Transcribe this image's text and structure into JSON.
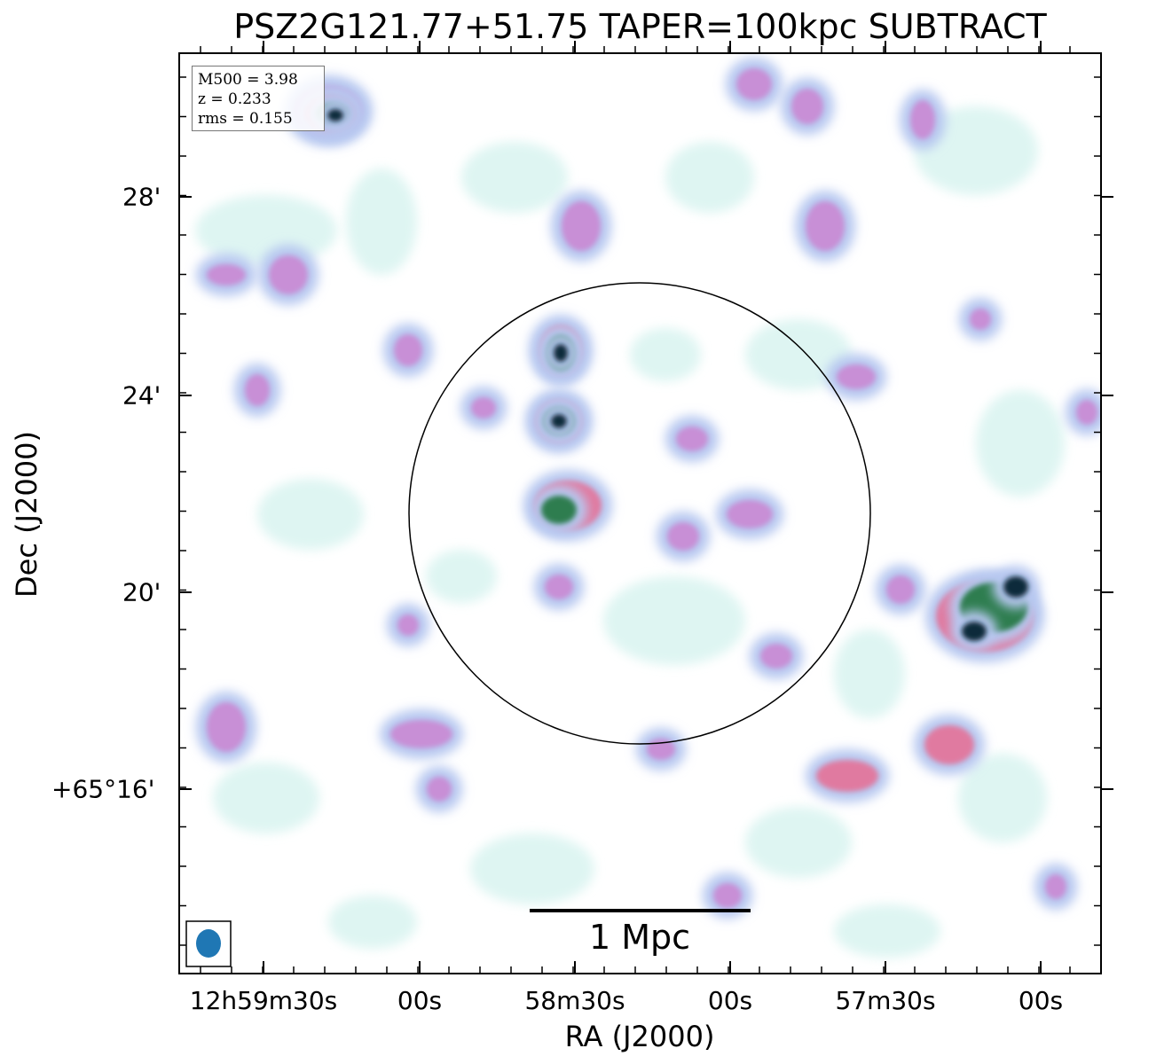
{
  "title": "PSZ2G121.77+51.75 TAPER=100kpc SUBTRACT",
  "axes": {
    "xlabel": "RA (J2000)",
    "ylabel": "Dec (J2000)",
    "x_ticks": [
      "12h59m30s",
      "00s",
      "58m30s",
      "00s",
      "57m30s",
      "00s"
    ],
    "y_ticks": [
      "28'",
      "24'",
      "20'",
      "+65°16'"
    ]
  },
  "info": {
    "m500": "M500 = 3.98",
    "z": "z = 0.233",
    "rms": "rms = 0.155"
  },
  "scalebar": {
    "label": "1 Mpc"
  },
  "beam": {
    "color": "#1f77b4"
  },
  "colormap": [
    "#d6f3ef",
    "#b7c8f0",
    "#c88fd6",
    "#e07aa0",
    "#2e7d4f",
    "#0f2a3a"
  ]
}
